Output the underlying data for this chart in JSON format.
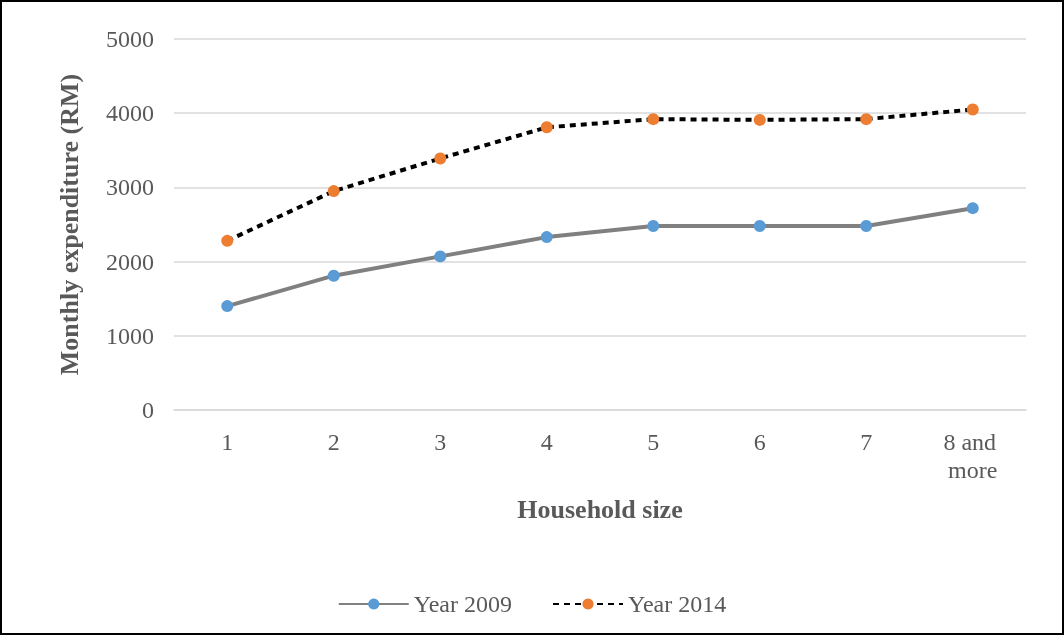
{
  "chart_data": {
    "type": "line",
    "xlabel": "Household size",
    "ylabel": "Monthly expenditure (RM)",
    "categories": [
      "1",
      "2",
      "3",
      "4",
      "5",
      "6",
      "7",
      "8 and more"
    ],
    "series": [
      {
        "name": "Year 2009",
        "color": "#808080",
        "colors": [
          "#5b9bd5",
          "#5b9bd5",
          "#5b9bd5",
          "#5b9bd5",
          "#5b9bd5",
          "#5b9bd5",
          "#5b9bd5",
          "#5b9bd5"
        ],
        "line_style": "solid",
        "values": [
          1400,
          1810,
          2070,
          2330,
          2480,
          2480,
          2480,
          2720
        ]
      },
      {
        "name": "Year 2014",
        "color": "#000000",
        "colors": [
          "#ed7d31",
          "#ed7d31",
          "#ed7d31",
          "#ed7d31",
          "#ed7d31",
          "#ed7d31",
          "#ed7d31",
          "#ed7d31"
        ],
        "line_style": "dashed",
        "values": [
          2280,
          2950,
          3390,
          3810,
          3920,
          3910,
          3920,
          4050
        ]
      }
    ],
    "ylim": [
      0,
      5000
    ],
    "yticks": [
      0,
      1000,
      2000,
      3000,
      4000,
      5000
    ],
    "grid": "y",
    "legend": "bottom",
    "marker": "circle"
  }
}
